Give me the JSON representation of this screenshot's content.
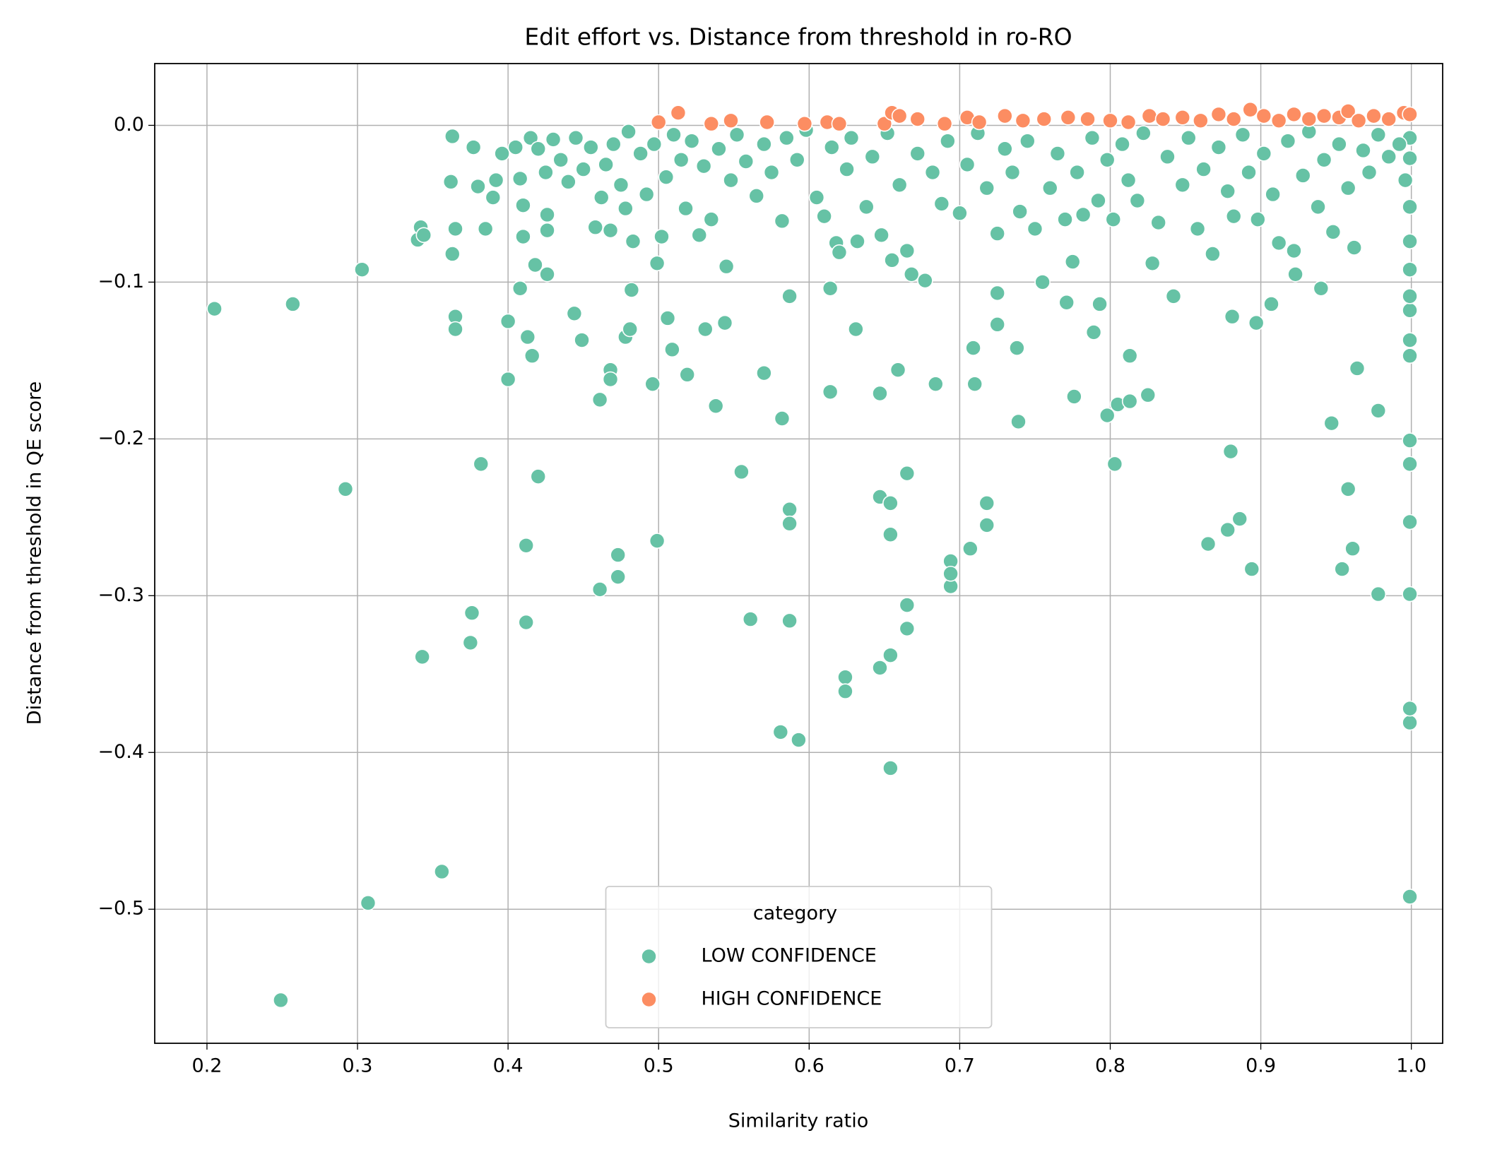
{
  "chart_data": {
    "type": "scatter",
    "title": "Edit effort vs. Distance from threshold in ro-RO",
    "x_label": "Similarity ratio",
    "y_label": "Distance from threshold in QE score",
    "xlim": [
      0.1653,
      1.0208
    ],
    "ylim": [
      -0.5855,
      0.0394
    ],
    "xticks": [
      0.2,
      0.3,
      0.4,
      0.5,
      0.6,
      0.7,
      0.8,
      0.9,
      {
        "value": 1.0,
        "label": "1.0"
      }
    ],
    "yticks": [
      {
        "value": 0,
        "label": "0.0"
      },
      {
        "value": -0.1,
        "label": "−0.1"
      },
      {
        "value": -0.2,
        "label": "−0.2"
      },
      {
        "value": -0.3,
        "label": "−0.3"
      },
      {
        "value": -0.4,
        "label": "−0.4"
      },
      {
        "value": -0.5,
        "label": "−0.5"
      }
    ],
    "grid": true,
    "legend_title": "category",
    "legend_loc": "lower center",
    "series": [
      {
        "name": "LOW CONFIDENCE",
        "color": "#66c2a5",
        "x": [
          0.205,
          0.257,
          0.292,
          0.303,
          0.249,
          0.307,
          0.356,
          0.343,
          0.376,
          0.375,
          0.382,
          0.412,
          0.412,
          0.42,
          0.4,
          0.416,
          0.413,
          0.4,
          0.365,
          0.365,
          0.408,
          0.426,
          0.444,
          0.449,
          0.461,
          0.473,
          0.473,
          0.461,
          0.468,
          0.468,
          0.478,
          0.481,
          0.482,
          0.496,
          0.499,
          0.499,
          0.506,
          0.509,
          0.519,
          0.531,
          0.538,
          0.544,
          0.555,
          0.561,
          0.57,
          0.582,
          0.581,
          0.593,
          0.587,
          0.587,
          0.587,
          0.587,
          0.614,
          0.614,
          0.624,
          0.624,
          0.631,
          0.647,
          0.647,
          0.647,
          0.654,
          0.654,
          0.654,
          0.654,
          0.659,
          0.665,
          0.665,
          0.665,
          0.684,
          0.694,
          0.694,
          0.694,
          0.707,
          0.71,
          0.709,
          0.718,
          0.718,
          0.725,
          0.725,
          0.738,
          0.739,
          0.776,
          0.771,
          0.789,
          0.793,
          0.798,
          0.803,
          0.805,
          0.813,
          0.813,
          0.825,
          0.865,
          0.878,
          0.886,
          0.88,
          0.881,
          0.894,
          0.897,
          0.907,
          0.923,
          0.94,
          0.947,
          0.954,
          0.958,
          0.961,
          0.964,
          0.978,
          0.978,
          0.999,
          0.999,
          0.999,
          0.999,
          0.999,
          0.999,
          0.999,
          0.999,
          0.999,
          0.999,
          0.999,
          0.999,
          0.999,
          0.999,
          0.999,
          0.999,
          0.34,
          0.342,
          0.344,
          0.365,
          0.363,
          0.362,
          0.363,
          0.377,
          0.38,
          0.385,
          0.39,
          0.392,
          0.396,
          0.405,
          0.408,
          0.41,
          0.41,
          0.415,
          0.418,
          0.42,
          0.425,
          0.426,
          0.426,
          0.43,
          0.435,
          0.44,
          0.445,
          0.45,
          0.455,
          0.458,
          0.462,
          0.465,
          0.468,
          0.47,
          0.475,
          0.478,
          0.48,
          0.483,
          0.488,
          0.492,
          0.497,
          0.502,
          0.505,
          0.51,
          0.515,
          0.518,
          0.522,
          0.527,
          0.53,
          0.535,
          0.54,
          0.545,
          0.548,
          0.552,
          0.558,
          0.565,
          0.57,
          0.575,
          0.582,
          0.585,
          0.592,
          0.598,
          0.605,
          0.61,
          0.615,
          0.618,
          0.62,
          0.625,
          0.628,
          0.632,
          0.638,
          0.642,
          0.648,
          0.652,
          0.655,
          0.66,
          0.665,
          0.668,
          0.672,
          0.677,
          0.682,
          0.688,
          0.692,
          0.7,
          0.705,
          0.712,
          0.718,
          0.725,
          0.73,
          0.735,
          0.74,
          0.745,
          0.75,
          0.755,
          0.76,
          0.765,
          0.77,
          0.775,
          0.778,
          0.782,
          0.788,
          0.792,
          0.798,
          0.802,
          0.808,
          0.812,
          0.818,
          0.822,
          0.828,
          0.832,
          0.838,
          0.842,
          0.848,
          0.852,
          0.858,
          0.862,
          0.868,
          0.872,
          0.878,
          0.882,
          0.888,
          0.892,
          0.898,
          0.902,
          0.908,
          0.912,
          0.918,
          0.922,
          0.928,
          0.932,
          0.938,
          0.942,
          0.948,
          0.952,
          0.958,
          0.962,
          0.968,
          0.972,
          0.978,
          0.985,
          0.992,
          0.996
        ],
        "values": [
          -0.117,
          -0.114,
          -0.232,
          -0.092,
          -0.558,
          -0.496,
          -0.476,
          -0.339,
          -0.311,
          -0.33,
          -0.216,
          -0.317,
          -0.268,
          -0.224,
          -0.162,
          -0.147,
          -0.135,
          -0.125,
          -0.122,
          -0.13,
          -0.104,
          -0.095,
          -0.12,
          -0.137,
          -0.296,
          -0.274,
          -0.288,
          -0.175,
          -0.156,
          -0.162,
          -0.135,
          -0.13,
          -0.105,
          -0.165,
          -0.265,
          -0.088,
          -0.123,
          -0.143,
          -0.159,
          -0.13,
          -0.179,
          -0.126,
          -0.221,
          -0.315,
          -0.158,
          -0.187,
          -0.387,
          -0.392,
          -0.245,
          -0.254,
          -0.316,
          -0.109,
          -0.17,
          -0.104,
          -0.352,
          -0.361,
          -0.13,
          -0.237,
          -0.171,
          -0.346,
          -0.338,
          -0.41,
          -0.241,
          -0.261,
          -0.156,
          -0.306,
          -0.321,
          -0.222,
          -0.165,
          -0.278,
          -0.294,
          -0.286,
          -0.27,
          -0.165,
          -0.142,
          -0.241,
          -0.255,
          -0.127,
          -0.107,
          -0.142,
          -0.189,
          -0.173,
          -0.113,
          -0.132,
          -0.114,
          -0.185,
          -0.216,
          -0.178,
          -0.176,
          -0.147,
          -0.172,
          -0.267,
          -0.258,
          -0.251,
          -0.208,
          -0.122,
          -0.283,
          -0.126,
          -0.114,
          -0.095,
          -0.104,
          -0.19,
          -0.283,
          -0.232,
          -0.27,
          -0.155,
          -0.299,
          -0.182,
          -0.492,
          -0.381,
          -0.372,
          -0.299,
          -0.253,
          -0.216,
          -0.201,
          -0.147,
          -0.137,
          -0.118,
          -0.109,
          -0.092,
          -0.074,
          -0.052,
          -0.021,
          -0.008,
          -0.073,
          -0.065,
          -0.07,
          -0.066,
          -0.082,
          -0.036,
          -0.007,
          -0.014,
          -0.039,
          -0.066,
          -0.046,
          -0.035,
          -0.018,
          -0.014,
          -0.034,
          -0.051,
          -0.071,
          -0.008,
          -0.089,
          -0.015,
          -0.03,
          -0.057,
          -0.067,
          -0.009,
          -0.022,
          -0.036,
          -0.008,
          -0.028,
          -0.014,
          -0.065,
          -0.046,
          -0.025,
          -0.067,
          -0.012,
          -0.038,
          -0.053,
          -0.004,
          -0.074,
          -0.018,
          -0.044,
          -0.012,
          -0.071,
          -0.033,
          -0.006,
          -0.022,
          -0.053,
          -0.01,
          -0.07,
          -0.026,
          -0.06,
          -0.015,
          -0.09,
          -0.035,
          -0.006,
          -0.023,
          -0.045,
          -0.012,
          -0.03,
          -0.061,
          -0.008,
          -0.022,
          -0.003,
          -0.046,
          -0.058,
          -0.014,
          -0.075,
          -0.081,
          -0.028,
          -0.008,
          -0.074,
          -0.052,
          -0.02,
          -0.07,
          -0.005,
          -0.086,
          -0.038,
          -0.08,
          -0.095,
          -0.018,
          -0.099,
          -0.03,
          -0.05,
          -0.01,
          -0.056,
          -0.025,
          -0.005,
          -0.04,
          -0.069,
          -0.015,
          -0.03,
          -0.055,
          -0.01,
          -0.066,
          -0.1,
          -0.04,
          -0.018,
          -0.06,
          -0.087,
          -0.03,
          -0.057,
          -0.008,
          -0.048,
          -0.022,
          -0.06,
          -0.012,
          -0.035,
          -0.048,
          -0.005,
          -0.088,
          -0.062,
          -0.02,
          -0.109,
          -0.038,
          -0.008,
          -0.066,
          -0.028,
          -0.082,
          -0.014,
          -0.042,
          -0.058,
          -0.006,
          -0.03,
          -0.06,
          -0.018,
          -0.044,
          -0.075,
          -0.01,
          -0.08,
          -0.032,
          -0.004,
          -0.052,
          -0.022,
          -0.068,
          -0.012,
          -0.04,
          -0.078,
          -0.016,
          -0.03,
          -0.006,
          -0.02,
          -0.012,
          -0.035
        ]
      },
      {
        "name": "HIGH CONFIDENCE",
        "color": "#fc8d62",
        "x": [
          0.5,
          0.513,
          0.535,
          0.548,
          0.572,
          0.597,
          0.612,
          0.62,
          0.65,
          0.655,
          0.66,
          0.672,
          0.69,
          0.705,
          0.713,
          0.73,
          0.742,
          0.756,
          0.772,
          0.785,
          0.8,
          0.812,
          0.826,
          0.835,
          0.848,
          0.86,
          0.872,
          0.882,
          0.893,
          0.902,
          0.912,
          0.922,
          0.932,
          0.942,
          0.952,
          0.958,
          0.965,
          0.975,
          0.985,
          0.995,
          0.999
        ],
        "values": [
          0.002,
          0.008,
          0.001,
          0.003,
          0.002,
          0.001,
          0.002,
          0.001,
          0.001,
          0.008,
          0.006,
          0.004,
          0.001,
          0.005,
          0.002,
          0.006,
          0.003,
          0.004,
          0.005,
          0.004,
          0.003,
          0.002,
          0.006,
          0.004,
          0.005,
          0.003,
          0.007,
          0.004,
          0.01,
          0.006,
          0.003,
          0.007,
          0.004,
          0.006,
          0.005,
          0.009,
          0.003,
          0.006,
          0.004,
          0.008,
          0.007
        ]
      }
    ]
  }
}
